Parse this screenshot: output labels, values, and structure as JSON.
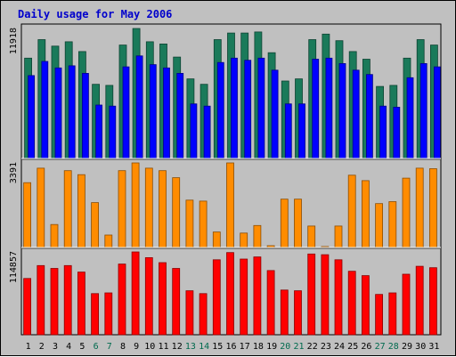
{
  "chart_data": {
    "type": "bar",
    "title": "Daily usage for May 2006",
    "categories": [
      "1",
      "2",
      "3",
      "4",
      "5",
      "6",
      "7",
      "8",
      "9",
      "10",
      "11",
      "12",
      "13",
      "14",
      "15",
      "16",
      "17",
      "18",
      "19",
      "20",
      "21",
      "22",
      "23",
      "24",
      "25",
      "26",
      "27",
      "28",
      "29",
      "30",
      "31"
    ],
    "weekend_days": [
      "6",
      "7",
      "13",
      "14",
      "20",
      "21",
      "27",
      "28"
    ],
    "panels": [
      {
        "max_label": "11918",
        "ymax": 11918,
        "series": [
          {
            "color": "#1a7a5a",
            "values": [
              9200,
              10900,
              10300,
              10700,
              9800,
              6800,
              6700,
              10400,
              11918,
              10700,
              10500,
              9300,
              7300,
              6800,
              10900,
              11500,
              11500,
              11600,
              9700,
              7100,
              7300,
              10900,
              11400,
              10800,
              9800,
              9100,
              6600,
              6700,
              9200,
              10900,
              10400
            ]
          },
          {
            "color": "#0000ff",
            "values": [
              7600,
              8900,
              8300,
              8500,
              7800,
              4900,
              4800,
              8400,
              9400,
              8600,
              8300,
              7800,
              5000,
              4800,
              8800,
              9200,
              9000,
              9200,
              8100,
              5000,
              5000,
              9100,
              9200,
              8700,
              8100,
              7700,
              4800,
              4700,
              7400,
              8700,
              8400
            ]
          }
        ]
      },
      {
        "max_label": "3391",
        "ymax": 3391,
        "series": [
          {
            "color": "#ff8c00",
            "values": [
              2600,
              3180,
              920,
              3080,
              2920,
              1800,
              500,
              3080,
              3391,
              3180,
              3080,
              2800,
              1900,
              1860,
              620,
              3391,
              580,
              880,
              70,
              1940,
              1940,
              860,
              40,
              860,
              2900,
              2680,
              1760,
              1840,
              2780,
              3180,
              3160
            ]
          }
        ]
      },
      {
        "max_label": "114857",
        "ymax": 114857,
        "series": [
          {
            "color": "#ff0000",
            "values": [
              78000,
              96000,
              92000,
              96000,
              87000,
              57000,
              58000,
              98000,
              114857,
              107000,
              100000,
              92000,
              61000,
              57000,
              104000,
              114000,
              105000,
              108000,
              89000,
              62000,
              61000,
              112000,
              111000,
              104000,
              88000,
              82000,
              56000,
              58000,
              84000,
              95000,
              93000
            ]
          }
        ]
      }
    ],
    "colors": {
      "weekday_label": "#000000",
      "weekend_label": "#006a4e",
      "title": "#0000cc"
    }
  }
}
